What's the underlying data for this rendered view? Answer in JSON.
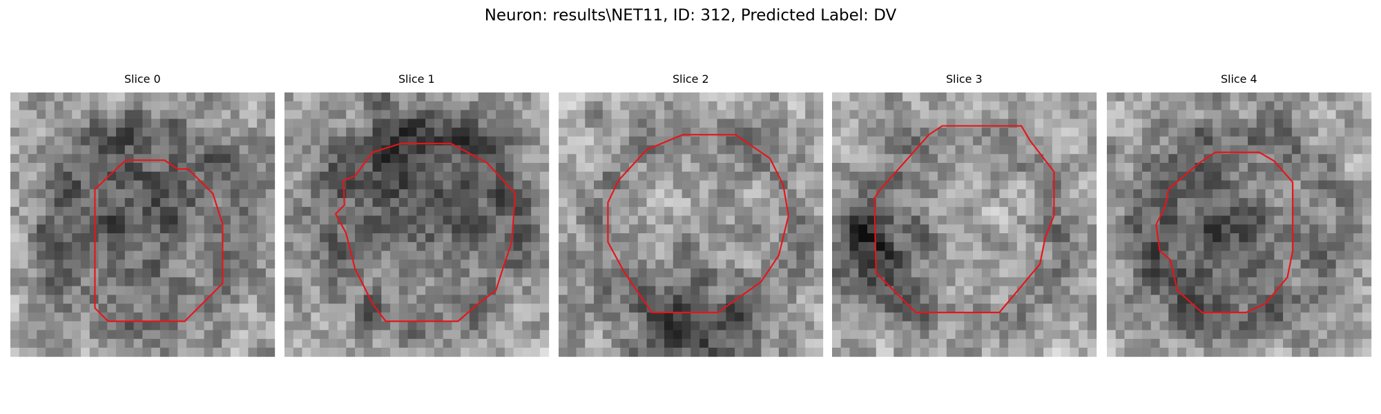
{
  "header": {
    "title": "Neuron: results\\NET11, ID: 312, Predicted Label: DV"
  },
  "panels": [
    {
      "title": "Slice 0"
    },
    {
      "title": "Slice 1"
    },
    {
      "title": "Slice 2"
    },
    {
      "title": "Slice 3"
    },
    {
      "title": "Slice 4"
    }
  ]
}
